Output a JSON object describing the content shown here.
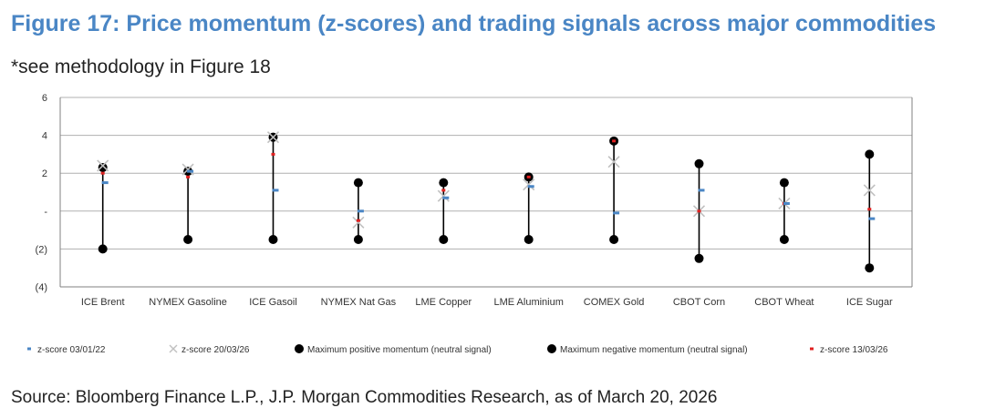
{
  "title": "Figure 17: Price momentum (z-scores) and trading signals across major commodities",
  "note": "*see methodology in Figure 18",
  "source": "Source: Bloomberg Finance L.P., J.P. Morgan Commodities Research, as of March 20, 2026",
  "colors": {
    "title": "#4a86c5",
    "zscore_0301": "#4a86c5",
    "zscore_2003": "#c0c0c0",
    "zscore_1303": "#e02020",
    "momentum": "#000000",
    "grid": "#b0b0b0"
  },
  "chart_data": {
    "type": "scatter",
    "categories": [
      "ICE Brent",
      "NYMEX Gasoline",
      "ICE Gasoil",
      "NYMEX Nat Gas",
      "LME Copper",
      "LME Aluminium",
      "COMEX Gold",
      "CBOT Corn",
      "CBOT Wheat",
      "ICE Sugar"
    ],
    "y_ticks": [
      6,
      4,
      2,
      0,
      -2,
      -4
    ],
    "y_tick_labels": [
      "6",
      "4",
      "2",
      "-",
      "(2)",
      "(4)"
    ],
    "ylim": [
      -4,
      6
    ],
    "grid": true,
    "legend_position": "bottom",
    "series": [
      {
        "name": "z-score 03/01/22",
        "marker": "dash",
        "values": [
          1.5,
          2.1,
          1.1,
          0.0,
          0.7,
          1.3,
          -0.1,
          1.1,
          0.4,
          -0.4
        ]
      },
      {
        "name": "z-score 20/03/26",
        "marker": "cross",
        "values": [
          2.4,
          2.2,
          3.9,
          -0.6,
          0.8,
          1.4,
          2.6,
          0.0,
          0.4,
          1.1
        ]
      },
      {
        "name": "Maximum positive momentum (neutral signal)",
        "marker": "dot",
        "values": [
          2.3,
          2.1,
          3.9,
          1.5,
          1.5,
          1.8,
          3.7,
          2.5,
          1.5,
          3.0
        ]
      },
      {
        "name": "Maximum negative momentum (neutral signal)",
        "marker": "dot",
        "values": [
          -2.0,
          -1.5,
          -1.5,
          -1.5,
          -1.5,
          -1.5,
          -1.5,
          -2.5,
          -1.5,
          -3.0
        ]
      },
      {
        "name": "z-score 13/03/26",
        "marker": "dash",
        "values": [
          2.0,
          1.8,
          3.0,
          -0.5,
          1.1,
          1.8,
          3.7,
          0.0,
          0.4,
          0.1
        ]
      }
    ]
  }
}
